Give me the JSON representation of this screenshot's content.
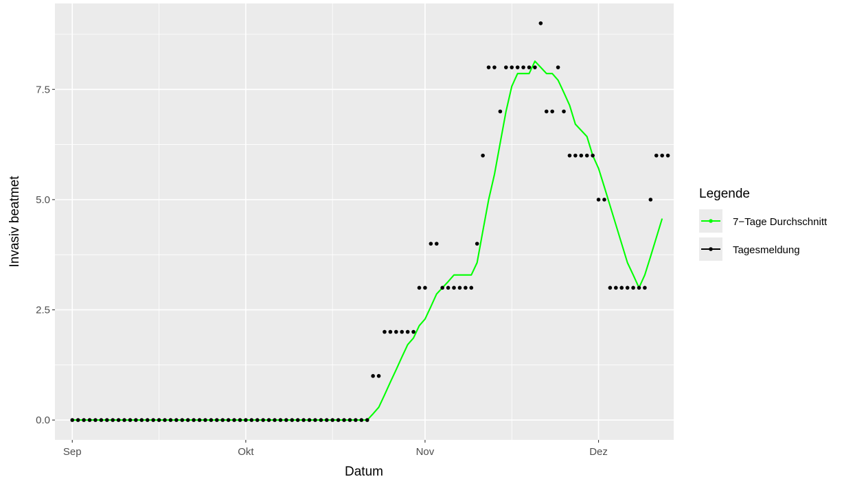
{
  "chart_data": {
    "type": "line",
    "xlabel": "Datum",
    "ylabel": "Invasiv beatmet",
    "x_start": "2020-09-01",
    "x_end": "2020-12-10",
    "xlim": [
      "2020-08-29",
      "2020-12-14"
    ],
    "ylim": [
      -0.45,
      9.45
    ],
    "x_ticks": [
      {
        "date": "2020-09-01",
        "label": "Sep"
      },
      {
        "date": "2020-10-01",
        "label": "Okt"
      },
      {
        "date": "2020-11-01",
        "label": "Nov"
      },
      {
        "date": "2020-12-01",
        "label": "Dez"
      }
    ],
    "x_minor_ticks": [
      "2020-09-16",
      "2020-10-16",
      "2020-11-16"
    ],
    "y_ticks": [
      {
        "value": 0,
        "label": "0.0"
      },
      {
        "value": 2.5,
        "label": "2.5"
      },
      {
        "value": 5,
        "label": "5.0"
      },
      {
        "value": 7.5,
        "label": "7.5"
      }
    ],
    "y_minor_ticks": [
      1.25,
      3.75,
      6.25,
      8.75
    ],
    "grid": true,
    "legend": {
      "title": "Legende",
      "position": "right"
    },
    "series": [
      {
        "name": "7−Tage Durchschnitt",
        "kind": "line",
        "color": "#00ff00",
        "values": [
          0,
          0,
          0,
          0,
          0,
          0,
          0,
          0,
          0,
          0,
          0,
          0,
          0,
          0,
          0,
          0,
          0,
          0,
          0,
          0,
          0,
          0,
          0,
          0,
          0,
          0,
          0,
          0,
          0,
          0,
          0,
          0,
          0,
          0,
          0,
          0,
          0,
          0,
          0,
          0,
          0,
          0,
          0,
          0,
          0,
          0,
          0,
          0,
          0,
          0,
          0,
          0,
          0.14,
          0.29,
          0.57,
          0.86,
          1.14,
          1.43,
          1.71,
          1.86,
          2.14,
          2.29,
          2.57,
          2.86,
          3.0,
          3.14,
          3.29,
          3.29,
          3.29,
          3.29,
          3.57,
          4.29,
          5.0,
          5.57,
          6.29,
          7.0,
          7.57,
          7.86,
          7.86,
          7.86,
          8.14,
          8.0,
          7.86,
          7.86,
          7.71,
          7.43,
          7.14,
          6.71,
          6.57,
          6.43,
          6.0,
          5.71,
          5.29,
          4.86,
          4.43,
          4.0,
          3.57,
          3.29,
          3.0,
          3.29,
          3.71,
          4.14,
          4.57
        ]
      },
      {
        "name": "Tagesmeldung",
        "kind": "points",
        "color": "#000000",
        "values": [
          0,
          0,
          0,
          0,
          0,
          0,
          0,
          0,
          0,
          0,
          0,
          0,
          0,
          0,
          0,
          0,
          0,
          0,
          0,
          0,
          0,
          0,
          0,
          0,
          0,
          0,
          0,
          0,
          0,
          0,
          0,
          0,
          0,
          0,
          0,
          0,
          0,
          0,
          0,
          0,
          0,
          0,
          0,
          0,
          0,
          0,
          0,
          0,
          0,
          0,
          0,
          0,
          1,
          1,
          2,
          2,
          2,
          2,
          2,
          2,
          3,
          3,
          4,
          4,
          3,
          3,
          3,
          3,
          3,
          3,
          4,
          6,
          8,
          8,
          7,
          8,
          8,
          8,
          8,
          8,
          8,
          9,
          7,
          7,
          8,
          7,
          6,
          6,
          6,
          6,
          6,
          5,
          5,
          3,
          3,
          3,
          3,
          3,
          3,
          3,
          5,
          6,
          6,
          6
        ]
      }
    ]
  }
}
